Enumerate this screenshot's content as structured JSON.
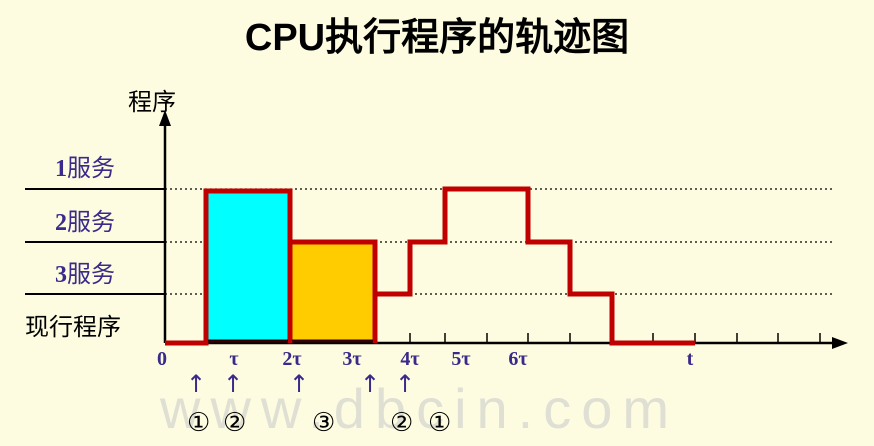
{
  "title": "CPU执行程序的轨迹图",
  "y_axis_label": "程序",
  "levels": [
    {
      "num": "1",
      "text": "服务"
    },
    {
      "num": "2",
      "text": "服务"
    },
    {
      "num": "3",
      "text": "服务"
    }
  ],
  "current_program": "现行程序",
  "x_ticks": [
    "0",
    "τ",
    "2τ",
    "3τ",
    "4τ",
    "5τ",
    "6τ",
    "t"
  ],
  "interrupt_markers": [
    "①",
    "②",
    "③",
    "②",
    "①"
  ],
  "watermark": "www.dbcin.com",
  "colors": {
    "trace": "#c00000",
    "service2_fill": "#00ffff",
    "service3_fill": "#ffcc00",
    "label_color": "#3a2a8a"
  }
}
